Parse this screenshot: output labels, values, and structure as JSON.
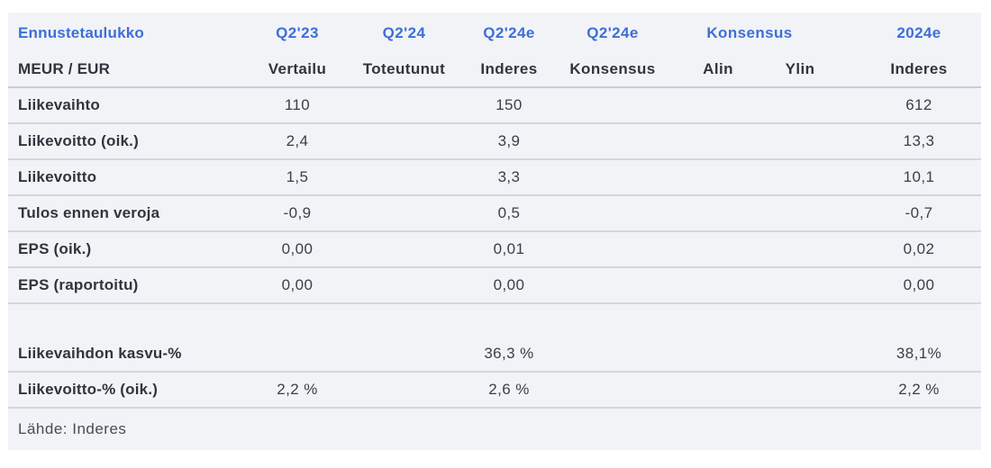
{
  "table": {
    "title": "Ennustetaulukko",
    "units_label": "MEUR / EUR",
    "period_headers": [
      "Q2'23",
      "Q2'24",
      "Q2'24e",
      "Q2'24e"
    ],
    "group_header": "Konsensus",
    "year_header": "2024e",
    "sub_headers": [
      "Vertailu",
      "Toteutunut",
      "Inderes",
      "Konsensus",
      "Alin",
      "Ylin",
      "Inderes"
    ],
    "rows": [
      {
        "label": "Liikevaihto",
        "values": [
          "110",
          "",
          "150",
          "",
          "",
          "",
          "612"
        ]
      },
      {
        "label": "Liikevoitto (oik.)",
        "values": [
          "2,4",
          "",
          "3,9",
          "",
          "",
          "",
          "13,3"
        ]
      },
      {
        "label": "Liikevoitto",
        "values": [
          "1,5",
          "",
          "3,3",
          "",
          "",
          "",
          "10,1"
        ]
      },
      {
        "label": "Tulos ennen veroja",
        "values": [
          "-0,9",
          "",
          "0,5",
          "",
          "",
          "",
          "-0,7"
        ]
      },
      {
        "label": "EPS (oik.)",
        "values": [
          "0,00",
          "",
          "0,01",
          "",
          "",
          "",
          "0,02"
        ]
      },
      {
        "label": "EPS (raportoitu)",
        "values": [
          "0,00",
          "",
          "0,00",
          "",
          "",
          "",
          "0,00"
        ]
      },
      {
        "label": "",
        "spacer": true,
        "values": [
          "",
          "",
          "",
          "",
          "",
          "",
          ""
        ]
      },
      {
        "label": "Liikevaihdon kasvu-%",
        "values": [
          "",
          "",
          "36,3 %",
          "",
          "",
          "",
          "38,1%"
        ]
      },
      {
        "label": "Liikevoitto-% (oik.)",
        "values": [
          "2,2 %",
          "",
          "2,6 %",
          "",
          "",
          "",
          "2,2 %"
        ]
      }
    ],
    "source": "Lähde: Inderes"
  },
  "colors": {
    "accent_blue": "#3d6fd7",
    "dark_text": "#2f353d",
    "value_text": "#3a4049",
    "source_text": "#464c55",
    "table_background": "#f2f3f7",
    "row_border": "#d5d7de",
    "header_border": "#c9ccd4"
  }
}
